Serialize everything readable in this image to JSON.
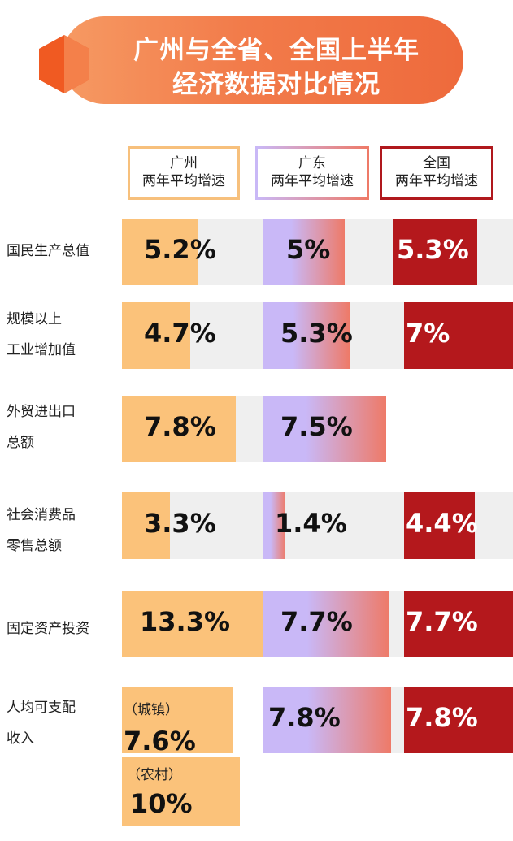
{
  "title": {
    "line1": "广州与全省、全国上半年",
    "line2": "经济数据对比情况"
  },
  "legend": [
    {
      "line1": "广州",
      "line2": "两年平均增速",
      "color": "#f7c07c"
    },
    {
      "line1": "广东",
      "line2": "两年平均增速",
      "color": "#c8b6f3"
    },
    {
      "line1": "全国",
      "line2": "两年平均增速",
      "color": "#b0181d"
    }
  ],
  "colors": {
    "guangzhou": "#fbc27a",
    "guangdong_start": "#c9b8f7",
    "guangdong_end": "#ee7a68",
    "national": "#b4181c",
    "bar_background": "#efefef"
  },
  "chart_data": {
    "type": "bar",
    "title": "广州与全省、全国上半年经济数据对比情况",
    "series": [
      {
        "name": "广州 两年平均增速",
        "values": [
          5.2,
          4.7,
          7.8,
          3.3,
          13.3,
          7.6
        ]
      },
      {
        "name": "广东 两年平均增速",
        "values": [
          5,
          5.3,
          7.5,
          1.4,
          7.7,
          7.8
        ]
      },
      {
        "name": "全国 两年平均增速",
        "values": [
          5.3,
          7,
          null,
          4.4,
          7.7,
          7.8
        ]
      }
    ],
    "categories": [
      "国民生产总值",
      "规模以上工业增加值",
      "外贸进出口总额",
      "社会消费品零售总额",
      "固定资产投资",
      "人均可支配收入"
    ],
    "category_lines": [
      [
        "国民生产总值"
      ],
      [
        "规模以上",
        "工业增加值"
      ],
      [
        "外贸进出口",
        "总额"
      ],
      [
        "社会消费品",
        "零售总额"
      ],
      [
        "固定资产投资"
      ],
      [
        "人均可支配",
        "收入"
      ]
    ],
    "labels": [
      [
        "5.2%",
        "5%",
        "5.3%"
      ],
      [
        "4.7%",
        "5.3%",
        "7%"
      ],
      [
        "7.8%",
        "7.5%",
        null
      ],
      [
        "3.3%",
        "1.4%",
        "4.4%"
      ],
      [
        "13.3%",
        "7.7%",
        "7.7%"
      ],
      [
        "7.6%",
        "7.8%",
        "7.8%"
      ]
    ],
    "extra": {
      "rural_label": "（农村）",
      "rural_value": 10,
      "rural_value_label": "10%",
      "urban_label": "（城镇）"
    }
  }
}
